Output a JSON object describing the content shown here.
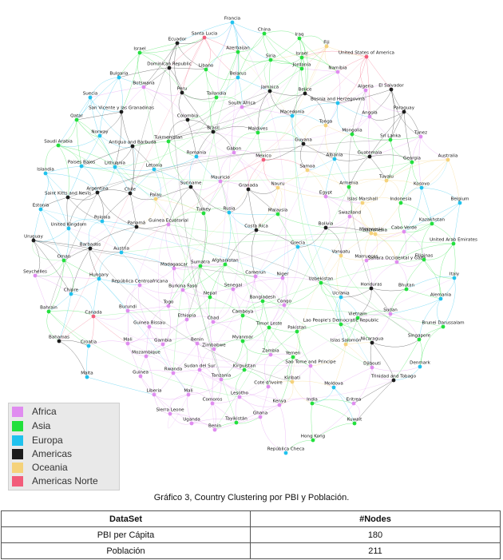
{
  "legend": [
    {
      "label": "Africa",
      "color": "#e08cf0"
    },
    {
      "label": "Asia",
      "color": "#22e03c"
    },
    {
      "label": "Europa",
      "color": "#20c2ee"
    },
    {
      "label": "Americas",
      "color": "#1c1c1c"
    },
    {
      "label": "Oceania",
      "color": "#f5d27a"
    },
    {
      "label": "Americas Norte",
      "color": "#f25c7a"
    }
  ],
  "caption": "Gráfico 3, Country Clustering por PBI y Población.",
  "table": {
    "headers": [
      "DataSet",
      "#Nodes"
    ],
    "rows": [
      [
        "PBI per Cápita",
        "180"
      ],
      [
        "Población",
        "211"
      ]
    ]
  },
  "nodes": [
    {
      "label": "Francia",
      "region": "Europa"
    },
    {
      "label": "China",
      "region": "Asia"
    },
    {
      "label": "Israel",
      "region": "Asia"
    },
    {
      "label": "Ecuador",
      "region": "Americas"
    },
    {
      "label": "Santa Lucia",
      "region": "Americas Norte"
    },
    {
      "label": "Iraq",
      "region": "Asia"
    },
    {
      "label": "Fiji",
      "region": "Oceania"
    },
    {
      "label": "Azerbaijan",
      "region": "Asia"
    },
    {
      "label": "United States of America",
      "region": "Americas Norte"
    },
    {
      "label": "Israel",
      "region": "Asia"
    },
    {
      "label": "Siria",
      "region": "Asia"
    },
    {
      "label": "Namibia",
      "region": "Africa"
    },
    {
      "label": "Jordania",
      "region": "Asia"
    },
    {
      "label": "Dominican Republic",
      "region": "Americas"
    },
    {
      "label": "Libano",
      "region": "Asia"
    },
    {
      "label": "Bulgaria",
      "region": "Europa"
    },
    {
      "label": "Belarus",
      "region": "Europa"
    },
    {
      "label": "Botswana",
      "region": "Africa"
    },
    {
      "label": "Algeria",
      "region": "Africa"
    },
    {
      "label": "El Salvador",
      "region": "Americas"
    },
    {
      "label": "Peru",
      "region": "Americas"
    },
    {
      "label": "Tailandia",
      "region": "Asia"
    },
    {
      "label": "Jamaica",
      "region": "Americas"
    },
    {
      "label": "Belice",
      "region": "Americas"
    },
    {
      "label": "Suecia",
      "region": "Europa"
    },
    {
      "label": "Bosnia and Herzegovina",
      "region": "Europa"
    },
    {
      "label": "San Vicente y las Granadinas",
      "region": "Americas"
    },
    {
      "label": "South Africa",
      "region": "Africa"
    },
    {
      "label": "Micronesia",
      "region": "Oceania"
    },
    {
      "label": "Paraguay",
      "region": "Americas"
    },
    {
      "label": "Qatar",
      "region": "Asia"
    },
    {
      "label": "Colombia",
      "region": "Americas"
    },
    {
      "label": "Macedonia",
      "region": "Europa"
    },
    {
      "label": "Angola",
      "region": "Africa"
    },
    {
      "label": "Brasil",
      "region": "Americas"
    },
    {
      "label": "Maldives",
      "region": "Asia"
    },
    {
      "label": "Tonga",
      "region": "Oceania"
    },
    {
      "label": "Mongolia",
      "region": "Asia"
    },
    {
      "label": "Sri Lanka",
      "region": "Asia"
    },
    {
      "label": "Tunez",
      "region": "Africa"
    },
    {
      "label": "Norway",
      "region": "Europa"
    },
    {
      "label": "Tukmenistan",
      "region": "Asia"
    },
    {
      "label": "Saudi Arabia",
      "region": "Asia"
    },
    {
      "label": "Antigua and Barbuda",
      "region": "Americas"
    },
    {
      "label": "Guyana",
      "region": "Americas"
    },
    {
      "label": "Guatemala",
      "region": "Americas"
    },
    {
      "label": "Australia",
      "region": "Oceania"
    },
    {
      "label": "Gabon",
      "region": "Africa"
    },
    {
      "label": "Albania",
      "region": "Europa"
    },
    {
      "label": "Georgia",
      "region": "Asia"
    },
    {
      "label": "Romania",
      "region": "Europa"
    },
    {
      "label": "Mexico",
      "region": "Americas Norte"
    },
    {
      "label": "Samoa",
      "region": "Oceania"
    },
    {
      "label": "Tuvalu",
      "region": "Oceania"
    },
    {
      "label": "Paises Bajos",
      "region": "Europa"
    },
    {
      "label": "Lithuania",
      "region": "Europa"
    },
    {
      "label": "Letonia",
      "region": "Europa"
    },
    {
      "label": "Islandia",
      "region": "Europa"
    },
    {
      "label": "Mauricio",
      "region": "Africa"
    },
    {
      "label": "Armenia",
      "region": "Asia"
    },
    {
      "label": "Kosovo",
      "region": "Europa"
    },
    {
      "label": "Suriname",
      "region": "Americas"
    },
    {
      "label": "Granada",
      "region": "Americas"
    },
    {
      "label": "Nauru",
      "region": "Oceania"
    },
    {
      "label": "Argentina",
      "region": "Americas"
    },
    {
      "label": "Chile",
      "region": "Americas"
    },
    {
      "label": "Palau",
      "region": "Oceania"
    },
    {
      "label": "Egypt",
      "region": "Africa"
    },
    {
      "label": "Islas Marshall",
      "region": "Oceania"
    },
    {
      "label": "Indonesia",
      "region": "Asia"
    },
    {
      "label": "Saint Kitts and Nevis",
      "region": "Americas"
    },
    {
      "label": "Belgium",
      "region": "Europa"
    },
    {
      "label": "Estonia",
      "region": "Europa"
    },
    {
      "label": "Turkey",
      "region": "Asia"
    },
    {
      "label": "Rusia",
      "region": "Europa"
    },
    {
      "label": "Malaysia",
      "region": "Asia"
    },
    {
      "label": "Swaziland",
      "region": "Africa"
    },
    {
      "label": "Kazakhstan",
      "region": "Asia"
    },
    {
      "label": "Polonia",
      "region": "Europa"
    },
    {
      "label": "Panamá",
      "region": "Americas"
    },
    {
      "label": "Guinea Ecuatorial",
      "region": "Africa"
    },
    {
      "label": "United Kingdom",
      "region": "Europa"
    },
    {
      "label": "Costa Rica",
      "region": "Americas"
    },
    {
      "label": "Bolivia",
      "region": "Americas"
    },
    {
      "label": "Micronesia",
      "region": "Oceania"
    },
    {
      "label": "Cabo Verde",
      "region": "Africa"
    },
    {
      "label": "Uruguay",
      "region": "Americas"
    },
    {
      "label": "Grecia",
      "region": "Europa"
    },
    {
      "label": "United Arab Emirates",
      "region": "Asia"
    },
    {
      "label": "Barbados",
      "region": "Americas"
    },
    {
      "label": "Austria",
      "region": "Europa"
    },
    {
      "label": "Oman",
      "region": "Asia"
    },
    {
      "label": "Vanuatu",
      "region": "Oceania"
    },
    {
      "label": "Marruecos",
      "region": "Africa"
    },
    {
      "label": "Sahara Occidental y Gaza",
      "region": "Africa"
    },
    {
      "label": "Filipinas",
      "region": "Asia"
    },
    {
      "label": "Seychelles",
      "region": "Africa"
    },
    {
      "label": "Madagascar",
      "region": "Africa"
    },
    {
      "label": "Sumatra",
      "region": "Asia"
    },
    {
      "label": "Afghanistan",
      "region": "Asia"
    },
    {
      "label": "Hungary",
      "region": "Europa"
    },
    {
      "label": "Camerun",
      "region": "Africa"
    },
    {
      "label": "Niger",
      "region": "Africa"
    },
    {
      "label": "Uzbekistan",
      "region": "Asia"
    },
    {
      "label": "Honduras",
      "region": "Americas"
    },
    {
      "label": "Italy",
      "region": "Europa"
    },
    {
      "label": "República Centroafricana",
      "region": "Africa"
    },
    {
      "label": "Burkina Faso",
      "region": "Africa"
    },
    {
      "label": "Senegal",
      "region": "Africa"
    },
    {
      "label": "Nepal",
      "region": "Asia"
    },
    {
      "label": "Bhutan",
      "region": "Asia"
    },
    {
      "label": "Chipre",
      "region": "Europa"
    },
    {
      "label": "Ucrania",
      "region": "Europa"
    },
    {
      "label": "Bangladesh",
      "region": "Asia"
    },
    {
      "label": "Togo",
      "region": "Africa"
    },
    {
      "label": "Congo",
      "region": "Africa"
    },
    {
      "label": "Alemania",
      "region": "Europa"
    },
    {
      "label": "Burundi",
      "region": "Africa"
    },
    {
      "label": "Ethiopia",
      "region": "Africa"
    },
    {
      "label": "Chad",
      "region": "Africa"
    },
    {
      "label": "Camboya",
      "region": "Asia"
    },
    {
      "label": "Vietnam",
      "region": "Asia"
    },
    {
      "label": "Sudan",
      "region": "Africa"
    },
    {
      "label": "Bahrain",
      "region": "Asia"
    },
    {
      "label": "Canada",
      "region": "Americas Norte"
    },
    {
      "label": "Guinea Bissau",
      "region": "Africa"
    },
    {
      "label": "Timor Leste",
      "region": "Asia"
    },
    {
      "label": "Lao People's Democratic Republic",
      "region": "Asia"
    },
    {
      "label": "Brunei Darussalam",
      "region": "Asia"
    },
    {
      "label": "Pakistan",
      "region": "Asia"
    },
    {
      "label": "Mali",
      "region": "Africa"
    },
    {
      "label": "Gambia",
      "region": "Africa"
    },
    {
      "label": "Benin",
      "region": "Africa"
    },
    {
      "label": "Myanmar",
      "region": "Asia"
    },
    {
      "label": "Islas Salomón",
      "region": "Oceania"
    },
    {
      "label": "Nicaragua",
      "region": "Americas"
    },
    {
      "label": "Singapore",
      "region": "Asia"
    },
    {
      "label": "Bahamas",
      "region": "Americas"
    },
    {
      "label": "Mozambique",
      "region": "Africa"
    },
    {
      "label": "Zimbabwe",
      "region": "Africa"
    },
    {
      "label": "Zambia",
      "region": "Africa"
    },
    {
      "label": "Yemen",
      "region": "Asia"
    },
    {
      "label": "Croatia",
      "region": "Europa"
    },
    {
      "label": "Sao Tome and Principe",
      "region": "Africa"
    },
    {
      "label": "Djibouti",
      "region": "Africa"
    },
    {
      "label": "Denmark",
      "region": "Europa"
    },
    {
      "label": "Guinea",
      "region": "Africa"
    },
    {
      "label": "Rwanda",
      "region": "Africa"
    },
    {
      "label": "Sudan del Sur",
      "region": "Africa"
    },
    {
      "label": "Kirguistan",
      "region": "Asia"
    },
    {
      "label": "Kiribati",
      "region": "Oceania"
    },
    {
      "label": "Tanzania",
      "region": "Africa"
    },
    {
      "label": "Cote d'Ivoire",
      "region": "Africa"
    },
    {
      "label": "Moldova",
      "region": "Europa"
    },
    {
      "label": "Trinidad and Tobago",
      "region": "Americas"
    },
    {
      "label": "Malta",
      "region": "Europa"
    },
    {
      "label": "Liberia",
      "region": "Africa"
    },
    {
      "label": "Mali",
      "region": "Africa"
    },
    {
      "label": "Lesotho",
      "region": "Africa"
    },
    {
      "label": "Kenya",
      "region": "Africa"
    },
    {
      "label": "India",
      "region": "Asia"
    },
    {
      "label": "Eritrea",
      "region": "Africa"
    },
    {
      "label": "Comoros",
      "region": "Africa"
    },
    {
      "label": "Sierra Leone",
      "region": "Africa"
    },
    {
      "label": "Uganda",
      "region": "Africa"
    },
    {
      "label": "Tayikistán",
      "region": "Asia"
    },
    {
      "label": "Ghana",
      "region": "Africa"
    },
    {
      "label": "Benin",
      "region": "Africa"
    },
    {
      "label": "Kuwait",
      "region": "Asia"
    },
    {
      "label": "Hong Kong",
      "region": "Asia"
    },
    {
      "label": "República Checa",
      "region": "Europa"
    }
  ]
}
